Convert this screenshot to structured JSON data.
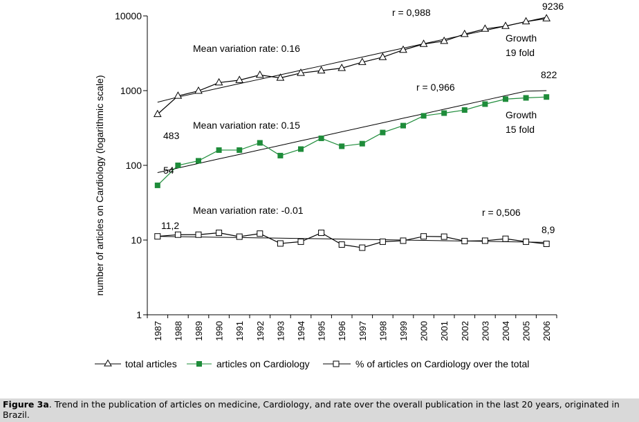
{
  "chart_data": {
    "type": "line",
    "yscale": "log",
    "ylabel": "number of articles on Cardiology (logarithmic scale)",
    "ylim": [
      1,
      10000
    ],
    "yticks": [
      "1",
      "10",
      "100",
      "1000",
      "10000"
    ],
    "categories": [
      "1987",
      "1988",
      "1989",
      "1990",
      "1991",
      "1992",
      "1993",
      "1994",
      "1995",
      "1996",
      "1997",
      "1998",
      "1999",
      "2000",
      "2001",
      "2002",
      "2003",
      "2004",
      "2005",
      "2006"
    ],
    "series": [
      {
        "key": "total",
        "name": "total articles",
        "marker": "triangle-open",
        "color": "#000000",
        "values": [
          483,
          850,
          990,
          1280,
          1380,
          1620,
          1480,
          1720,
          1850,
          2000,
          2400,
          2800,
          3500,
          4200,
          4600,
          5700,
          6700,
          7300,
          8400,
          9236
        ],
        "trend": [
          700,
          820,
          940,
          1080,
          1240,
          1420,
          1630,
          1870,
          2140,
          2460,
          2810,
          3230,
          3700,
          4240,
          4860,
          5570,
          6380,
          7310,
          8380,
          9600
        ]
      },
      {
        "key": "cardio",
        "name": "articles on Cardiology",
        "marker": "square-filled",
        "color": "#1e8c3a",
        "values": [
          54,
          100,
          115,
          160,
          160,
          200,
          135,
          165,
          230,
          180,
          195,
          275,
          340,
          460,
          500,
          550,
          660,
          770,
          800,
          822
        ],
        "trend": [
          80,
          92,
          106,
          122,
          140,
          161,
          185,
          213,
          244,
          281,
          323,
          371,
          427,
          490,
          564,
          648,
          745,
          856,
          984,
          1000
        ]
      },
      {
        "key": "pct",
        "name": "% of articles on Cardiology over the total",
        "marker": "square-open",
        "color": "#000000",
        "values": [
          11.2,
          11.8,
          11.8,
          12.5,
          11.1,
          12.2,
          9.0,
          9.5,
          12.5,
          8.7,
          7.9,
          9.5,
          9.8,
          11.2,
          11.1,
          9.7,
          9.8,
          10.4,
          9.5,
          8.9
        ],
        "trend": [
          11.2,
          11.1,
          11.0,
          10.9,
          10.8,
          10.7,
          10.6,
          10.5,
          10.4,
          10.3,
          10.2,
          10.1,
          10.0,
          9.9,
          9.8,
          9.7,
          9.6,
          9.5,
          9.4,
          9.3
        ]
      }
    ],
    "annotations": {
      "r_total": "r = 0,988",
      "r_cardio": "r = 0,966",
      "r_pct": "r = 0,506",
      "rate_total": "Mean variation rate: 0.16",
      "rate_cardio": "Mean variation rate: 0.15",
      "rate_pct": "Mean variation rate: -0.01",
      "growth_total_1": "Growth",
      "growth_total_2": "19 fold",
      "growth_cardio_1": "Growth",
      "growth_cardio_2": "15 fold",
      "start_total": "483",
      "end_total": "9236",
      "start_cardio": "54",
      "end_cardio": "822",
      "start_pct": "11,2",
      "end_pct": "8,9"
    }
  },
  "caption": {
    "label": "Figure 3a",
    "text": ". Trend in the publication of articles on medicine, Cardiology, and rate over the overall publication in the last 20 years, originated in Brazil."
  }
}
